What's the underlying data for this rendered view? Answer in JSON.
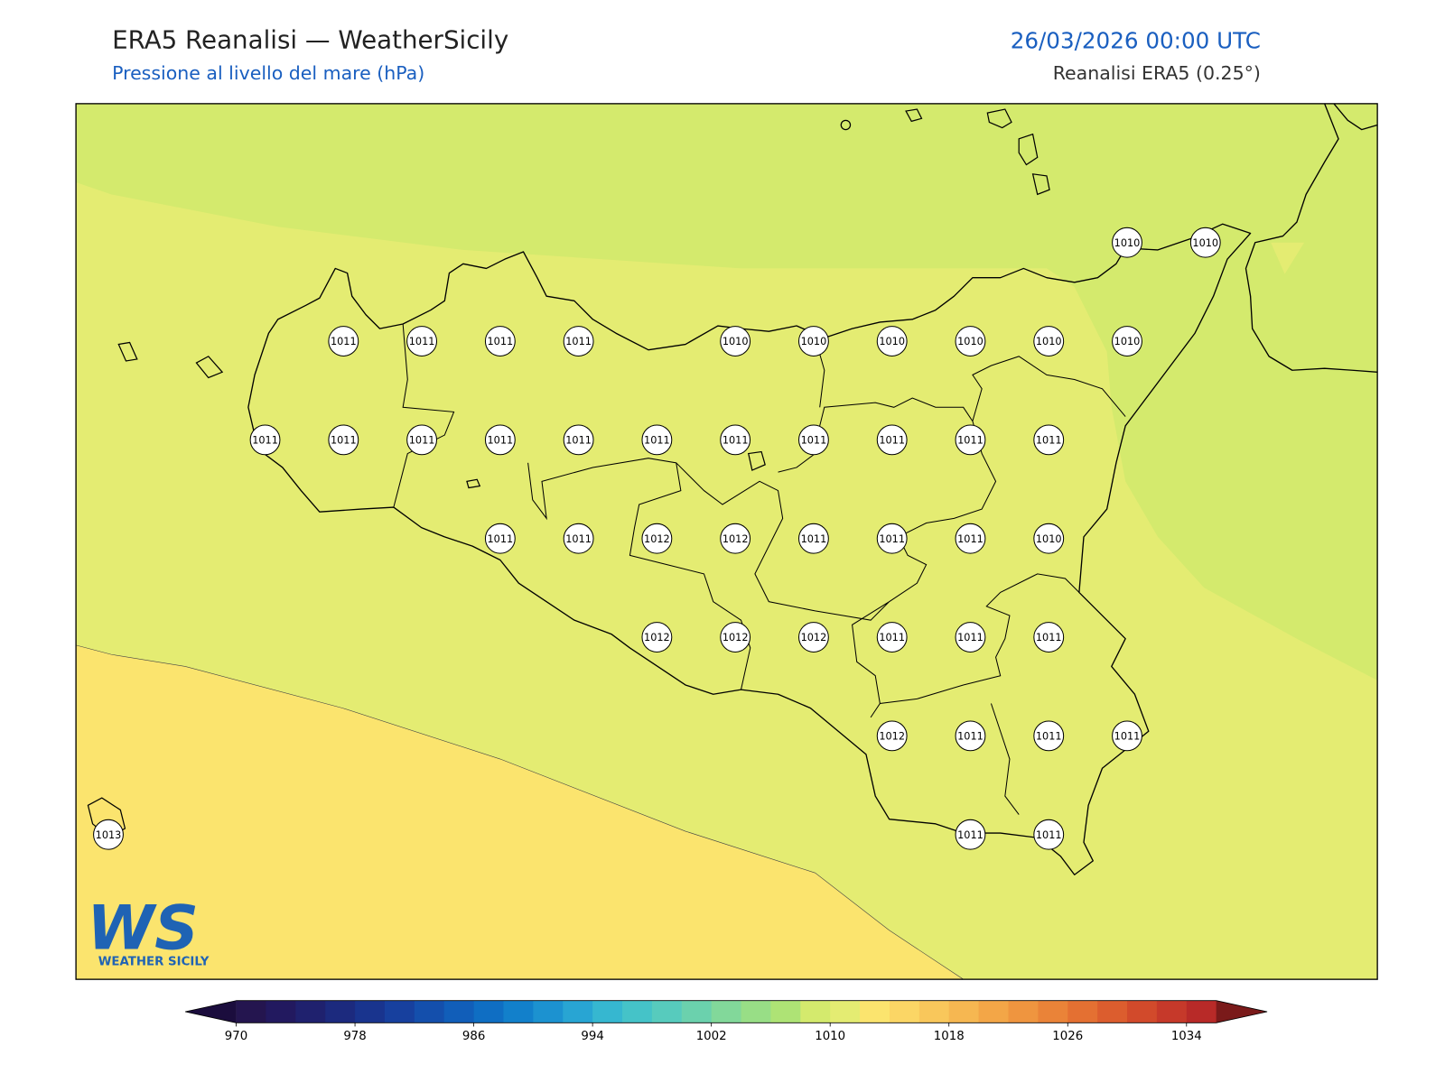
{
  "header": {
    "title": "ERA5 Reanalisi — WeatherSicily",
    "subtitle": "Pressione al livello del mare (hPa)",
    "datetime": "26/03/2026 00:00 UTC",
    "source": "Reanalisi ERA5 (0.25°)"
  },
  "map": {
    "stations": [
      [
        null,
        null,
        null,
        null,
        null,
        null,
        null,
        null,
        null,
        null,
        null,
        null,
        null,
        1010,
        1010
      ],
      [
        null,
        null,
        null,
        1011,
        1011,
        1011,
        1011,
        null,
        1010,
        1010,
        1010,
        1010,
        1010,
        1010,
        null
      ],
      [
        null,
        null,
        1011,
        1011,
        1011,
        1011,
        1011,
        1011,
        1011,
        1011,
        1011,
        1011,
        1011,
        null,
        null
      ],
      [
        null,
        null,
        null,
        null,
        null,
        1011,
        1011,
        1012,
        1012,
        1011,
        1011,
        1011,
        1010,
        null,
        null
      ],
      [
        null,
        null,
        null,
        null,
        null,
        null,
        null,
        1012,
        1012,
        1012,
        1011,
        1011,
        1011,
        null,
        null
      ],
      [
        null,
        null,
        null,
        null,
        null,
        null,
        null,
        null,
        null,
        null,
        1012,
        1011,
        1011,
        1011,
        null
      ],
      [
        1013,
        null,
        null,
        null,
        null,
        null,
        null,
        null,
        null,
        null,
        null,
        1011,
        1011,
        null,
        null
      ]
    ]
  },
  "logo": {
    "mark": "WS",
    "name": "WEATHER SICILY"
  },
  "colorbar": {
    "clim": [
      970,
      1036
    ],
    "ticks": [
      970,
      978,
      986,
      994,
      1002,
      1010,
      1018,
      1026,
      1034
    ],
    "colors": [
      "#24154f",
      "#22195f",
      "#1f216e",
      "#1c2a7e",
      "#19348e",
      "#17409e",
      "#144fac",
      "#115eb9",
      "#0f6ec3",
      "#1280cb",
      "#1c92d0",
      "#28a5d3",
      "#36b7d0",
      "#45c3c8",
      "#57cbbd",
      "#6bd1ad",
      "#82d89a",
      "#98de86",
      "#aee375",
      "#d4ea6d",
      "#e4ec72",
      "#fbe46e",
      "#fbd665",
      "#f9c75b",
      "#f6b751",
      "#f3a647",
      "#ef953f",
      "#ea8338",
      "#e47032",
      "#dc5d2e",
      "#d24a2b",
      "#c6392a",
      "#b82a28"
    ],
    "under_color": "#1b0d3d",
    "over_color": "#7a1a1a"
  }
}
